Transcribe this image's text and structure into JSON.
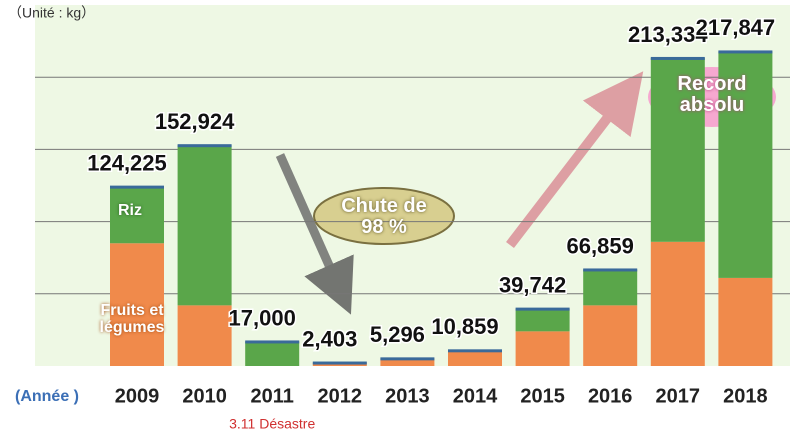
{
  "chart_data": {
    "type": "stacked_bar",
    "unit_label": "（Unité : kg）",
    "x_axis_label": "(Année )",
    "categories": [
      "2009",
      "2010",
      "2011",
      "2012",
      "2013",
      "2014",
      "2015",
      "2016",
      "2017",
      "2018"
    ],
    "series": [
      {
        "name": "Fruits et légumes",
        "color": "#f08a4b",
        "values": [
          85000,
          42000,
          0,
          2403,
          5296,
          10859,
          24000,
          42000,
          86000,
          61000
        ]
      },
      {
        "name": "Riz",
        "color": "#5aa64a",
        "values": [
          39225,
          110924,
          17000,
          0,
          0,
          0,
          15742,
          24859,
          127334,
          156847
        ]
      }
    ],
    "totals": {
      "values": [
        124225,
        152924,
        17000,
        2403,
        5296,
        10859,
        39742,
        66859,
        213334,
        217847
      ],
      "value_labels": [
        "124,225",
        "152,924",
        "17,000",
        "2,403",
        "5,296",
        "10,859",
        "39,742",
        "66,859",
        "213,334",
        "217,847"
      ]
    },
    "ylim": [
      0,
      250000
    ],
    "grid_lines": [
      50000,
      100000,
      150000,
      200000
    ],
    "grid": true,
    "category_note": {
      "index": 2,
      "text": "3.11 Désastre"
    },
    "annotation_drop": "Chute de 98 %",
    "annotation_record": "Record absolu"
  }
}
